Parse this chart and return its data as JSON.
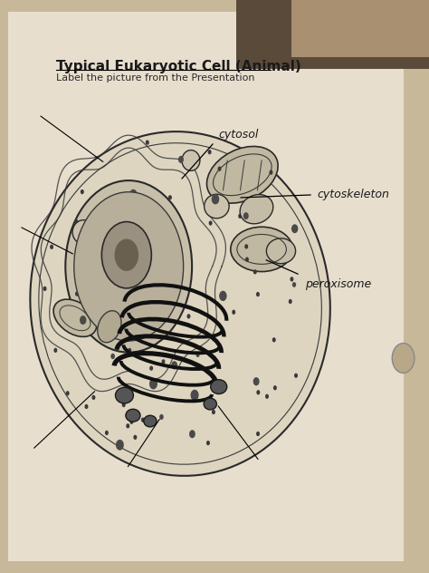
{
  "title": "Typical Eukaryotic Cell (Animal)",
  "subtitle": "Label the picture from the Presentation",
  "bg_color": "#c8b89a",
  "paper_color": "#e8dece",
  "title_fontsize": 11,
  "subtitle_fontsize": 8,
  "label_cytosol_text": "cytosol",
  "label_cytoskeleton_text": "cytoskeleton",
  "label_peroxisome_text": "peroxisome"
}
